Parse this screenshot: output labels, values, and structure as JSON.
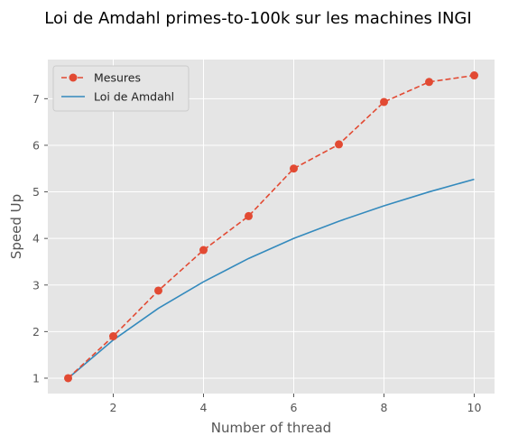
{
  "chart_data": {
    "type": "line",
    "title": "Loi de Amdahl primes-to-100k sur les machines INGI",
    "xlabel": "Number of thread",
    "ylabel": "Speed Up",
    "x": [
      1,
      2,
      3,
      4,
      5,
      6,
      7,
      8,
      9,
      10
    ],
    "xlim": [
      0.55,
      10.45
    ],
    "ylim": [
      0.67,
      7.84
    ],
    "xticks": [
      2,
      4,
      6,
      8,
      10
    ],
    "yticks": [
      1,
      2,
      3,
      4,
      5,
      6,
      7
    ],
    "grid": true,
    "legend_position": "top-left",
    "series": [
      {
        "name": "Mesures",
        "style": "dashed-with-markers",
        "color": "#E24A33",
        "values": [
          1.0,
          1.9,
          2.88,
          3.75,
          4.48,
          5.5,
          6.02,
          6.93,
          7.36,
          7.5
        ]
      },
      {
        "name": "Loi de Amdahl",
        "style": "solid",
        "color": "#348ABD",
        "values": [
          1.0,
          1.82,
          2.5,
          3.07,
          3.57,
          4.0,
          4.37,
          4.7,
          5.0,
          5.27
        ]
      }
    ]
  },
  "colors": {
    "plot_background": "#E5E5E5",
    "grid": "#FFFFFF"
  }
}
